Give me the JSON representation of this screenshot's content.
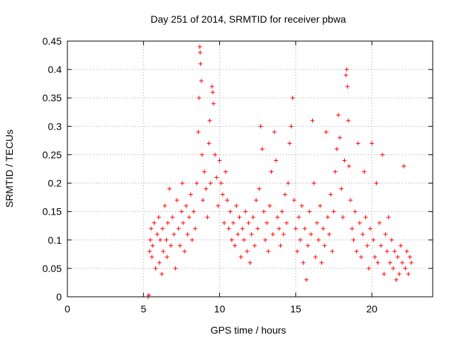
{
  "chart_data": {
    "type": "scatter",
    "title": "Day 251 of 2014, SRMTID for receiver pbwa",
    "xlabel": "GPS time / hours",
    "ylabel": "SRMTID / TECUs",
    "xlim": [
      0,
      24
    ],
    "ylim": [
      0,
      0.45
    ],
    "x_ticks": [
      0,
      5,
      10,
      15,
      20
    ],
    "y_ticks": [
      0,
      0.05,
      0.1,
      0.15,
      0.2,
      0.25,
      0.3,
      0.35,
      0.4,
      0.45
    ],
    "x_tick_labels": [
      "0",
      "5",
      "10",
      "15",
      "20"
    ],
    "y_tick_labels": [
      "0",
      "0.05",
      "0.1",
      "0.15",
      "0.2",
      "0.25",
      "0.3",
      "0.35",
      "0.4",
      "0.45"
    ],
    "grid": true,
    "marker": "+",
    "color": "#ff0000",
    "series": [
      {
        "name": "SRMTID",
        "points": [
          [
            5.3,
            0.0
          ],
          [
            5.35,
            0.003
          ],
          [
            5.4,
            0.08
          ],
          [
            5.45,
            0.1
          ],
          [
            5.5,
            0.12
          ],
          [
            5.55,
            0.07
          ],
          [
            5.6,
            0.09
          ],
          [
            5.7,
            0.13
          ],
          [
            5.8,
            0.05
          ],
          [
            5.9,
            0.11
          ],
          [
            6.0,
            0.14
          ],
          [
            6.05,
            0.06
          ],
          [
            6.1,
            0.1
          ],
          [
            6.2,
            0.04
          ],
          [
            6.25,
            0.12
          ],
          [
            6.3,
            0.08
          ],
          [
            6.4,
            0.16
          ],
          [
            6.5,
            0.1
          ],
          [
            6.55,
            0.07
          ],
          [
            6.6,
            0.13
          ],
          [
            6.7,
            0.19
          ],
          [
            6.8,
            0.09
          ],
          [
            6.9,
            0.14
          ],
          [
            7.0,
            0.11
          ],
          [
            7.1,
            0.05
          ],
          [
            7.2,
            0.17
          ],
          [
            7.3,
            0.12
          ],
          [
            7.4,
            0.09
          ],
          [
            7.5,
            0.15
          ],
          [
            7.55,
            0.2
          ],
          [
            7.6,
            0.13
          ],
          [
            7.7,
            0.08
          ],
          [
            7.8,
            0.16
          ],
          [
            7.9,
            0.11
          ],
          [
            8.0,
            0.14
          ],
          [
            8.1,
            0.18
          ],
          [
            8.2,
            0.1
          ],
          [
            8.3,
            0.15
          ],
          [
            8.4,
            0.12
          ],
          [
            8.5,
            0.2
          ],
          [
            8.6,
            0.29
          ],
          [
            8.65,
            0.35
          ],
          [
            8.7,
            0.44
          ],
          [
            8.72,
            0.43
          ],
          [
            8.75,
            0.41
          ],
          [
            8.8,
            0.38
          ],
          [
            8.85,
            0.25
          ],
          [
            8.9,
            0.17
          ],
          [
            9.0,
            0.22
          ],
          [
            9.1,
            0.19
          ],
          [
            9.2,
            0.14
          ],
          [
            9.3,
            0.27
          ],
          [
            9.35,
            0.31
          ],
          [
            9.4,
            0.2
          ],
          [
            9.5,
            0.37
          ],
          [
            9.55,
            0.36
          ],
          [
            9.6,
            0.34
          ],
          [
            9.7,
            0.25
          ],
          [
            9.8,
            0.21
          ],
          [
            9.9,
            0.16
          ],
          [
            10.0,
            0.24
          ],
          [
            10.1,
            0.2
          ],
          [
            10.2,
            0.18
          ],
          [
            10.3,
            0.13
          ],
          [
            10.4,
            0.22
          ],
          [
            10.5,
            0.17
          ],
          [
            10.6,
            0.12
          ],
          [
            10.7,
            0.15
          ],
          [
            10.8,
            0.1
          ],
          [
            10.9,
            0.13
          ],
          [
            11.0,
            0.09
          ],
          [
            11.1,
            0.16
          ],
          [
            11.2,
            0.11
          ],
          [
            11.3,
            0.14
          ],
          [
            11.4,
            0.07
          ],
          [
            11.5,
            0.12
          ],
          [
            11.6,
            0.1
          ],
          [
            11.7,
            0.15
          ],
          [
            11.8,
            0.08
          ],
          [
            11.9,
            0.13
          ],
          [
            12.0,
            0.06
          ],
          [
            12.1,
            0.11
          ],
          [
            12.2,
            0.14
          ],
          [
            12.3,
            0.09
          ],
          [
            12.4,
            0.17
          ],
          [
            12.5,
            0.12
          ],
          [
            12.6,
            0.19
          ],
          [
            12.7,
            0.3
          ],
          [
            12.8,
            0.26
          ],
          [
            12.9,
            0.15
          ],
          [
            13.0,
            0.1
          ],
          [
            13.1,
            0.13
          ],
          [
            13.2,
            0.08
          ],
          [
            13.3,
            0.16
          ],
          [
            13.4,
            0.22
          ],
          [
            13.5,
            0.11
          ],
          [
            13.6,
            0.29
          ],
          [
            13.7,
            0.24
          ],
          [
            13.8,
            0.14
          ],
          [
            13.9,
            0.12
          ],
          [
            14.0,
            0.09
          ],
          [
            14.1,
            0.15
          ],
          [
            14.2,
            0.11
          ],
          [
            14.3,
            0.18
          ],
          [
            14.4,
            0.13
          ],
          [
            14.5,
            0.2
          ],
          [
            14.6,
            0.27
          ],
          [
            14.7,
            0.3
          ],
          [
            14.8,
            0.35
          ],
          [
            14.9,
            0.17
          ],
          [
            15.0,
            0.12
          ],
          [
            15.1,
            0.08
          ],
          [
            15.2,
            0.14
          ],
          [
            15.3,
            0.1
          ],
          [
            15.4,
            0.16
          ],
          [
            15.5,
            0.06
          ],
          [
            15.6,
            0.12
          ],
          [
            15.7,
            0.03
          ],
          [
            15.8,
            0.09
          ],
          [
            15.9,
            0.15
          ],
          [
            16.0,
            0.11
          ],
          [
            16.1,
            0.31
          ],
          [
            16.2,
            0.2
          ],
          [
            16.3,
            0.07
          ],
          [
            16.4,
            0.13
          ],
          [
            16.5,
            0.1
          ],
          [
            16.6,
            0.16
          ],
          [
            16.7,
            0.06
          ],
          [
            16.8,
            0.12
          ],
          [
            16.9,
            0.09
          ],
          [
            17.0,
            0.29
          ],
          [
            17.1,
            0.14
          ],
          [
            17.2,
            0.11
          ],
          [
            17.3,
            0.18
          ],
          [
            17.4,
            0.08
          ],
          [
            17.5,
            0.15
          ],
          [
            17.6,
            0.22
          ],
          [
            17.7,
            0.26
          ],
          [
            17.8,
            0.32
          ],
          [
            17.9,
            0.28
          ],
          [
            18.0,
            0.19
          ],
          [
            18.1,
            0.14
          ],
          [
            18.2,
            0.24
          ],
          [
            18.3,
            0.39
          ],
          [
            18.35,
            0.4
          ],
          [
            18.4,
            0.37
          ],
          [
            18.45,
            0.31
          ],
          [
            18.5,
            0.23
          ],
          [
            18.6,
            0.17
          ],
          [
            18.7,
            0.12
          ],
          [
            18.8,
            0.1
          ],
          [
            18.9,
            0.15
          ],
          [
            19.0,
            0.08
          ],
          [
            19.1,
            0.27
          ],
          [
            19.2,
            0.13
          ],
          [
            19.3,
            0.07
          ],
          [
            19.4,
            0.11
          ],
          [
            19.5,
            0.22
          ],
          [
            19.6,
            0.14
          ],
          [
            19.7,
            0.09
          ],
          [
            19.8,
            0.05
          ],
          [
            19.9,
            0.12
          ],
          [
            20.0,
            0.27
          ],
          [
            20.1,
            0.1
          ],
          [
            20.2,
            0.07
          ],
          [
            20.3,
            0.2
          ],
          [
            20.4,
            0.06
          ],
          [
            20.5,
            0.13
          ],
          [
            20.6,
            0.09
          ],
          [
            20.7,
            0.25
          ],
          [
            20.8,
            0.04
          ],
          [
            20.9,
            0.11
          ],
          [
            21.0,
            0.08
          ],
          [
            21.1,
            0.14
          ],
          [
            21.2,
            0.06
          ],
          [
            21.3,
            0.1
          ],
          [
            21.4,
            0.05
          ],
          [
            21.5,
            0.08
          ],
          [
            21.6,
            0.03
          ],
          [
            21.7,
            0.07
          ],
          [
            21.8,
            0.04
          ],
          [
            21.9,
            0.09
          ],
          [
            22.0,
            0.06
          ],
          [
            22.1,
            0.23
          ],
          [
            22.2,
            0.05
          ],
          [
            22.3,
            0.08
          ],
          [
            22.4,
            0.04
          ],
          [
            22.5,
            0.07
          ],
          [
            22.6,
            0.06
          ]
        ]
      }
    ]
  }
}
